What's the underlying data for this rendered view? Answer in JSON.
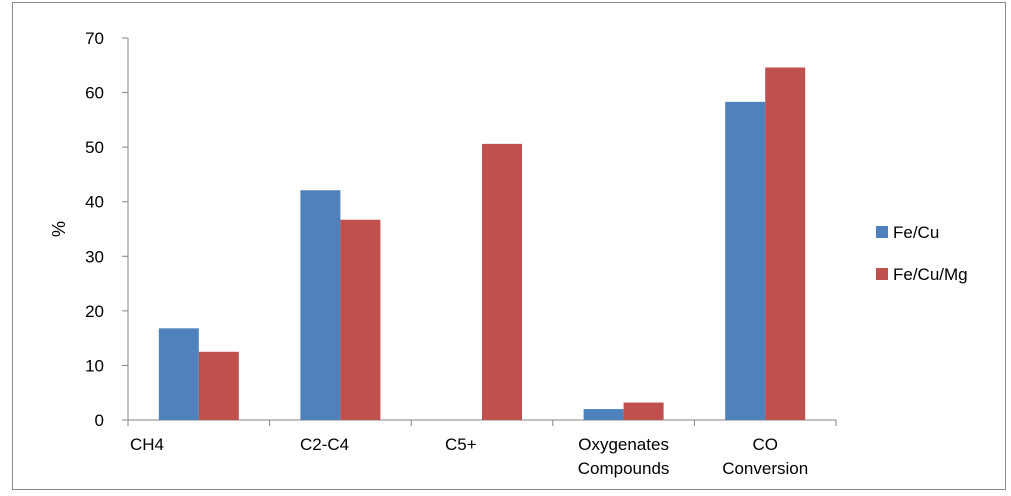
{
  "chart_data": {
    "type": "bar",
    "title": "",
    "xlabel": "",
    "ylabel": "%",
    "ylim": [
      0,
      70
    ],
    "yticks": [
      0,
      10,
      20,
      30,
      40,
      50,
      60,
      70
    ],
    "categories": [
      [
        "CH4"
      ],
      [
        "C2-C4"
      ],
      [
        "C5+"
      ],
      [
        "Oxygenates",
        "Compounds"
      ],
      [
        "CO",
        "Conversion"
      ]
    ],
    "series": [
      {
        "name": "Fe/Cu",
        "color": "#4f81bd",
        "values": [
          16.8,
          42.1,
          0,
          2.0,
          58.3
        ]
      },
      {
        "name": "Fe/Cu/Mg",
        "color": "#c0504d",
        "values": [
          12.5,
          36.7,
          50.6,
          3.2,
          64.6
        ]
      }
    ],
    "grid": false,
    "legend_position": "right"
  }
}
